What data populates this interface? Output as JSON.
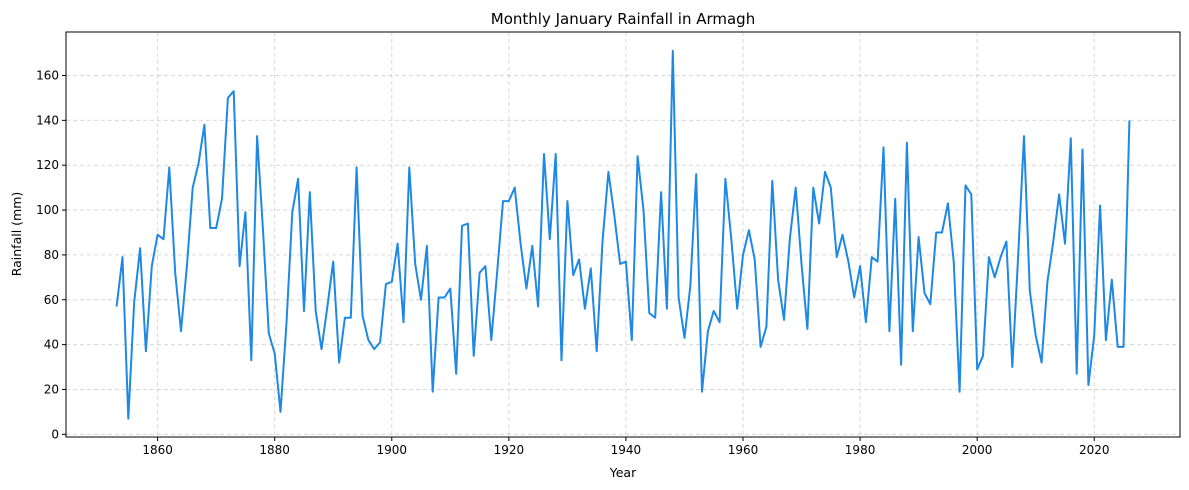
{
  "chart_data": {
    "type": "line",
    "title": "Monthly January Rainfall in Armagh",
    "xlabel": "Year",
    "ylabel": "Rainfall (mm)",
    "xlim": [
      1844.35,
      2034.65
    ],
    "ylim": [
      -1.2,
      179.4
    ],
    "xticks": [
      1860,
      1880,
      1900,
      1920,
      1940,
      1960,
      1980,
      2000,
      2020
    ],
    "yticks": [
      0,
      20,
      40,
      60,
      80,
      100,
      120,
      140,
      160
    ],
    "grid": true,
    "line_color": "#1e88e5",
    "x_start": 1853,
    "values": [
      57,
      79,
      7,
      59,
      83,
      37,
      75,
      89,
      87,
      119,
      72,
      46,
      75,
      110,
      121,
      138,
      92,
      92,
      105,
      150,
      153,
      75,
      99,
      33,
      133,
      91,
      45,
      36,
      10,
      49,
      99,
      114,
      55,
      108,
      55,
      38,
      57,
      77,
      32,
      52,
      52,
      119,
      53,
      42,
      38,
      41,
      67,
      68,
      85,
      50,
      119,
      76,
      60,
      84,
      19,
      61,
      61,
      65,
      27,
      93,
      94,
      35,
      72,
      75,
      42,
      72,
      104,
      104,
      110,
      85,
      65,
      84,
      57,
      125,
      87,
      125,
      33,
      104,
      71,
      78,
      56,
      74,
      37,
      86,
      117,
      98,
      76,
      77,
      42,
      124,
      100,
      54,
      52,
      108,
      56,
      171,
      61,
      43,
      66,
      116,
      19,
      46,
      55,
      50,
      114,
      87,
      56,
      80,
      91,
      78,
      39,
      48,
      113,
      69,
      51,
      87,
      110,
      76,
      47,
      110,
      94,
      117,
      110,
      79,
      89,
      77,
      61,
      75,
      50,
      79,
      77,
      128,
      46,
      105,
      31,
      130,
      46,
      88,
      63,
      58,
      90,
      90,
      103,
      77,
      19,
      111,
      107,
      29,
      35,
      79,
      70,
      79,
      86,
      30,
      79,
      133,
      64,
      44,
      32,
      68,
      86,
      107,
      85,
      132,
      27,
      127,
      22,
      44,
      102,
      42,
      69,
      39,
      39,
      140
    ]
  }
}
